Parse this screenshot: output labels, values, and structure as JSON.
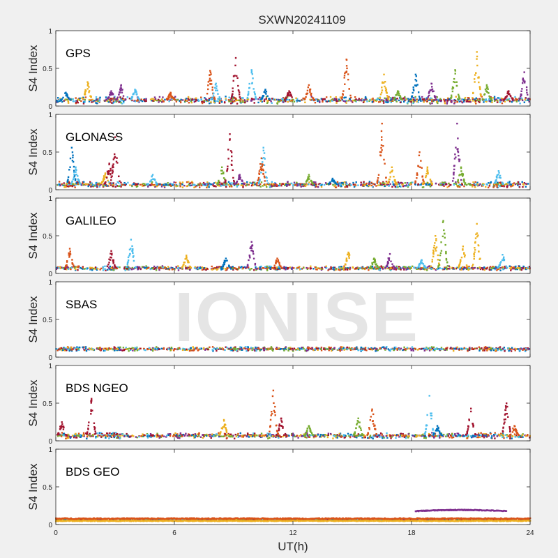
{
  "figure": {
    "title": "SXWN20241109",
    "watermark": "IONISE",
    "background": "#f0f0f0",
    "axes_background": "#ffffff"
  },
  "chart_data": {
    "type": "scatter",
    "xlabel": "UT(h)",
    "ylabel": "S4 Index",
    "xlim": [
      0,
      24
    ],
    "ylim": [
      0,
      1
    ],
    "xticks": [
      0,
      6,
      12,
      18,
      24
    ],
    "yticks": [
      0,
      0.5,
      1
    ],
    "ytick_labels": [
      "0",
      "0.5",
      "1"
    ],
    "grid": false,
    "colors": [
      "#0072bd",
      "#d95319",
      "#edb120",
      "#7e2f8e",
      "#77ac30",
      "#4dbeee",
      "#a2142f"
    ],
    "panels": [
      {
        "label": "GPS",
        "baseline": 0.08,
        "noise": 0.05,
        "spikes": [
          [
            0.5,
            0.18,
            0
          ],
          [
            1.6,
            0.32,
            2
          ],
          [
            2.8,
            0.2,
            3
          ],
          [
            3.3,
            0.28,
            3
          ],
          [
            4.0,
            0.22,
            5
          ],
          [
            5.8,
            0.18,
            1
          ],
          [
            7.8,
            0.47,
            1
          ],
          [
            8.1,
            0.3,
            5
          ],
          [
            9.1,
            0.64,
            6
          ],
          [
            9.9,
            0.48,
            5
          ],
          [
            10.6,
            0.22,
            0
          ],
          [
            11.8,
            0.2,
            6
          ],
          [
            12.8,
            0.28,
            1
          ],
          [
            14.7,
            0.62,
            1
          ],
          [
            16.6,
            0.42,
            2
          ],
          [
            17.3,
            0.2,
            4
          ],
          [
            18.2,
            0.42,
            0
          ],
          [
            19.0,
            0.3,
            3
          ],
          [
            20.2,
            0.48,
            4
          ],
          [
            21.3,
            0.72,
            2
          ],
          [
            21.8,
            0.28,
            4
          ],
          [
            22.9,
            0.2,
            6
          ],
          [
            23.7,
            0.45,
            3
          ]
        ],
        "arcs": []
      },
      {
        "label": "GLONASS",
        "baseline": 0.07,
        "noise": 0.04,
        "spikes": [
          [
            0.8,
            0.56,
            0
          ],
          [
            1.0,
            0.3,
            5
          ],
          [
            2.5,
            0.22,
            2
          ],
          [
            2.7,
            0.35,
            6
          ],
          [
            3.0,
            0.7,
            6
          ],
          [
            4.9,
            0.2,
            5
          ],
          [
            8.4,
            0.3,
            4
          ],
          [
            8.8,
            0.74,
            6
          ],
          [
            9.3,
            0.2,
            3
          ],
          [
            10.5,
            0.56,
            5
          ],
          [
            10.4,
            0.42,
            1
          ],
          [
            12.8,
            0.2,
            4
          ],
          [
            14.0,
            0.15,
            0
          ],
          [
            16.5,
            0.88,
            1
          ],
          [
            17.0,
            0.3,
            2
          ],
          [
            18.4,
            0.5,
            1
          ],
          [
            18.8,
            0.3,
            2
          ],
          [
            20.3,
            0.88,
            3
          ],
          [
            20.5,
            0.3,
            4
          ],
          [
            22.4,
            0.25,
            5
          ]
        ],
        "arcs": []
      },
      {
        "label": "GALILEO",
        "baseline": 0.07,
        "noise": 0.03,
        "spikes": [
          [
            0.7,
            0.33,
            1
          ],
          [
            2.8,
            0.3,
            6
          ],
          [
            3.8,
            0.45,
            5
          ],
          [
            6.6,
            0.24,
            2
          ],
          [
            8.6,
            0.2,
            0
          ],
          [
            9.9,
            0.42,
            3
          ],
          [
            11.2,
            0.2,
            1
          ],
          [
            14.8,
            0.28,
            2
          ],
          [
            16.1,
            0.2,
            4
          ],
          [
            16.9,
            0.26,
            3
          ],
          [
            18.5,
            0.18,
            5
          ],
          [
            19.2,
            0.5,
            2
          ],
          [
            19.6,
            0.7,
            4
          ],
          [
            20.6,
            0.36,
            2
          ],
          [
            21.3,
            0.66,
            2
          ],
          [
            22.6,
            0.25,
            5
          ]
        ],
        "arcs": []
      },
      {
        "label": "SBAS",
        "baseline": 0.11,
        "noise": 0.03,
        "spikes": [],
        "arcs": []
      },
      {
        "label": "BDS NGEO",
        "baseline": 0.07,
        "noise": 0.04,
        "spikes": [
          [
            0.3,
            0.25,
            6
          ],
          [
            1.8,
            0.56,
            6
          ],
          [
            8.5,
            0.28,
            2
          ],
          [
            11.0,
            0.67,
            1
          ],
          [
            11.4,
            0.3,
            6
          ],
          [
            12.8,
            0.2,
            4
          ],
          [
            15.3,
            0.3,
            4
          ],
          [
            16.0,
            0.42,
            1
          ],
          [
            18.9,
            0.6,
            5
          ],
          [
            19.3,
            0.2,
            0
          ],
          [
            21.0,
            0.43,
            6
          ],
          [
            22.8,
            0.5,
            6
          ],
          [
            23.2,
            0.2,
            1
          ]
        ],
        "arcs": []
      },
      {
        "label": "BDS GEO",
        "baseline": 0.07,
        "noise": 0.01,
        "spikes": [],
        "arcs": [
          {
            "x0": 18.2,
            "x1": 22.8,
            "y": 0.19,
            "color_index": 3
          }
        ]
      }
    ]
  }
}
